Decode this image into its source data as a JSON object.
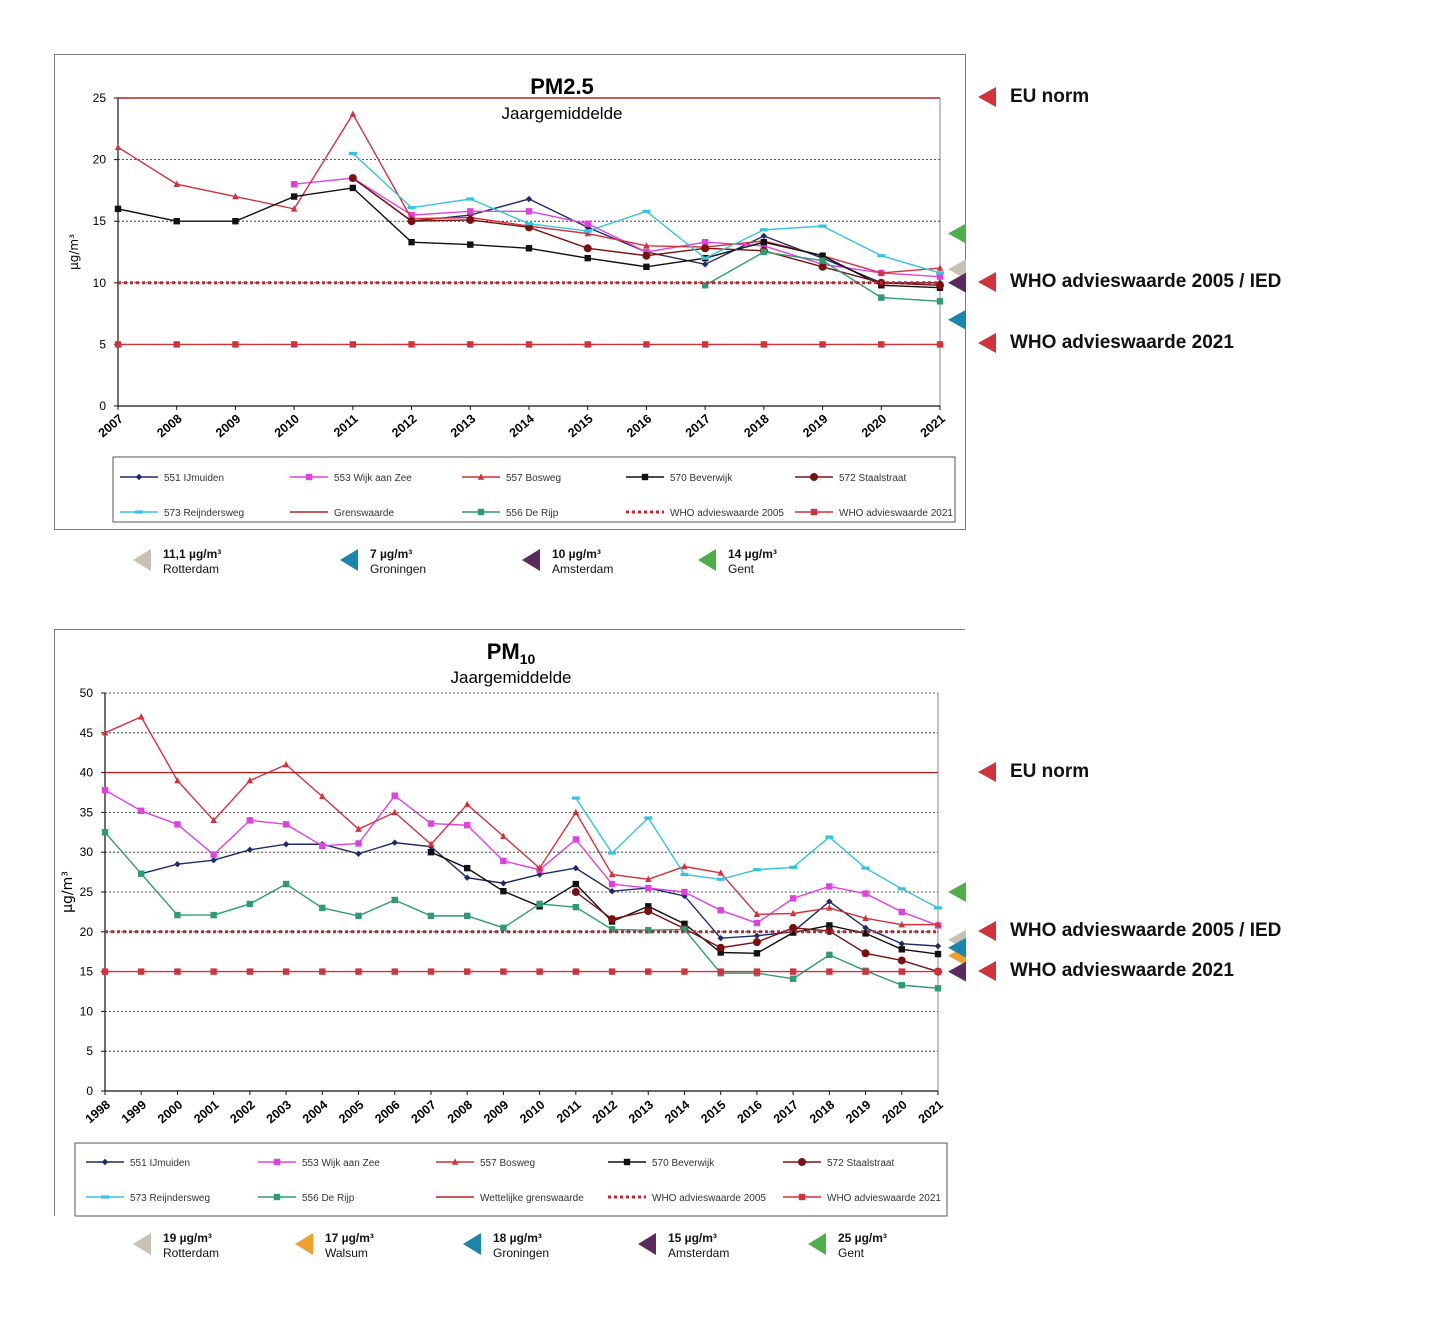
{
  "charts": [
    {
      "title": "PM2.5",
      "subtitle": "Jaargemiddelde",
      "ylabel": "µg/m³",
      "side_labels": [
        {
          "text": "EU norm",
          "value": 25
        },
        {
          "text": "WHO advieswaarde 2005 / IED",
          "value": 10
        },
        {
          "text": "WHO advieswaarde 2021",
          "value": 5
        }
      ],
      "cities": [
        {
          "value": "11,1 µg/m³",
          "name": "Rotterdam",
          "color": "#c7c2b3",
          "level": 11.1
        },
        {
          "value": "7 µg/m³",
          "name": "Groningen",
          "color": "#1b86ad",
          "level": 7
        },
        {
          "value": "10 µg/m³",
          "name": "Amsterdam",
          "color": "#5a2a5e",
          "level": 10
        },
        {
          "value": "14 µg/m³",
          "name": "Gent",
          "color": "#4fae4a",
          "level": 14
        }
      ]
    },
    {
      "title": "PM",
      "title_sub": "10",
      "subtitle": "Jaargemiddelde",
      "ylabel": "µg/m³",
      "side_labels": [
        {
          "text": "EU norm",
          "value": 40
        },
        {
          "text": "WHO advieswaarde 2005 / IED",
          "value": 20
        },
        {
          "text": "WHO advieswaarde 2021",
          "value": 15
        }
      ],
      "cities": [
        {
          "value": "19 µg/m³",
          "name": "Rotterdam",
          "color": "#c7c2b3",
          "level": 19
        },
        {
          "value": "17 µg/m³",
          "name": "Walsum",
          "color": "#f0a02a",
          "level": 17
        },
        {
          "value": "18 µg/m³",
          "name": "Groningen",
          "color": "#1b86ad",
          "level": 18
        },
        {
          "value": "15 µg/m³",
          "name": "Amsterdam",
          "color": "#5a2a5e",
          "level": 15
        },
        {
          "value": "25 µg/m³",
          "name": "Gent",
          "color": "#4fae4a",
          "level": 25
        }
      ]
    }
  ],
  "chart_data": [
    {
      "type": "line",
      "title": "PM2.5",
      "subtitle": "Jaargemiddelde",
      "ylabel": "µg/m³",
      "ylim": [
        0,
        25
      ],
      "yticks": [
        0,
        5,
        10,
        15,
        20,
        25
      ],
      "grid": true,
      "legend_placement": "bottom",
      "x": [
        "2007",
        "2008",
        "2009",
        "2010",
        "2011",
        "2012",
        "2013",
        "2014",
        "2015",
        "2016",
        "2017",
        "2018",
        "2019",
        "2020",
        "2021"
      ],
      "series": [
        {
          "name": "551 IJmuiden",
          "color": "#1f2a6b",
          "marker": "diamond",
          "style": "solid",
          "values": [
            null,
            null,
            null,
            null,
            18.5,
            15.0,
            15.5,
            16.8,
            14.5,
            12.5,
            11.5,
            13.8,
            12.0,
            10.0,
            10.0
          ]
        },
        {
          "name": "553 Wijk aan Zee",
          "color": "#e040e0",
          "marker": "square",
          "style": "solid",
          "values": [
            null,
            null,
            null,
            18.0,
            18.5,
            15.5,
            15.8,
            15.8,
            14.8,
            12.5,
            13.3,
            13.0,
            11.5,
            10.8,
            10.5
          ]
        },
        {
          "name": "557 Bosweg",
          "color": "#d3313b",
          "marker": "triangle",
          "style": "solid",
          "values": [
            21.0,
            18.0,
            17.0,
            16.0,
            23.7,
            15.2,
            15.3,
            14.6,
            14.0,
            13.0,
            12.9,
            13.4,
            12.2,
            10.8,
            11.2
          ]
        },
        {
          "name": "570 Beverwijk",
          "color": "#111111",
          "marker": "square",
          "style": "solid",
          "values": [
            16.0,
            15.0,
            15.0,
            17.0,
            17.7,
            13.3,
            13.1,
            12.8,
            12.0,
            11.3,
            12.0,
            13.3,
            12.2,
            9.8,
            9.6
          ]
        },
        {
          "name": "572 Staalstraat",
          "color": "#7a1010",
          "marker": "circle",
          "style": "solid",
          "values": [
            null,
            null,
            null,
            null,
            18.5,
            15.0,
            15.1,
            14.5,
            12.8,
            12.2,
            12.8,
            12.6,
            11.3,
            10.0,
            9.8
          ]
        },
        {
          "name": "573 Reijndersweg",
          "color": "#35c4e0",
          "marker": "dash",
          "style": "solid",
          "values": [
            null,
            null,
            null,
            null,
            20.5,
            16.1,
            16.8,
            14.8,
            14.2,
            15.8,
            12.0,
            14.3,
            14.6,
            12.2,
            10.8
          ]
        },
        {
          "name": "Grenswaarde",
          "color": "#b22222",
          "marker": "none",
          "style": "solid",
          "values": [
            25,
            25,
            25,
            25,
            25,
            25,
            25,
            25,
            25,
            25,
            25,
            25,
            25,
            25,
            25
          ]
        },
        {
          "name": "556 De Rijp",
          "color": "#2e9b74",
          "marker": "square",
          "style": "solid",
          "values": [
            null,
            null,
            null,
            null,
            null,
            null,
            null,
            null,
            null,
            null,
            9.8,
            12.5,
            11.8,
            8.8,
            8.5
          ]
        },
        {
          "name": "WHO advieswaarde 2005",
          "color": "#c0282f",
          "marker": "none",
          "style": "dotted",
          "values": [
            10,
            10,
            10,
            10,
            10,
            10,
            10,
            10,
            10,
            10,
            10,
            10,
            10,
            10,
            10
          ]
        },
        {
          "name": "WHO advieswaarde 2021",
          "color": "#d3313b",
          "marker": "square",
          "style": "solid",
          "values": [
            5,
            5,
            5,
            5,
            5,
            5,
            5,
            5,
            5,
            5,
            5,
            5,
            5,
            5,
            5
          ]
        }
      ]
    },
    {
      "type": "line",
      "title": "PM10",
      "subtitle": "Jaargemiddelde",
      "ylabel": "µg/m³",
      "ylim": [
        0,
        50
      ],
      "yticks": [
        0,
        5,
        10,
        15,
        20,
        25,
        30,
        35,
        40,
        45,
        50
      ],
      "grid": true,
      "legend_placement": "bottom",
      "x": [
        "1998",
        "1999",
        "2000",
        "2001",
        "2002",
        "2003",
        "2004",
        "2005",
        "2006",
        "2007",
        "2008",
        "2009",
        "2010",
        "2011",
        "2012",
        "2013",
        "2014",
        "2015",
        "2016",
        "2017",
        "2018",
        "2019",
        "2020",
        "2021"
      ],
      "series": [
        {
          "name": "551 IJmuiden",
          "color": "#1f2a6b",
          "marker": "diamond",
          "style": "solid",
          "values": [
            null,
            27.3,
            28.5,
            29.0,
            30.3,
            31.0,
            31.0,
            29.8,
            31.2,
            30.7,
            26.8,
            26.1,
            27.2,
            28.0,
            25.1,
            25.5,
            24.5,
            19.2,
            19.5,
            20.0,
            23.8,
            20.5,
            18.5,
            18.2
          ]
        },
        {
          "name": "553 Wijk aan Zee",
          "color": "#e040e0",
          "marker": "square",
          "style": "solid",
          "values": [
            37.8,
            35.2,
            33.5,
            29.7,
            34.0,
            33.5,
            30.8,
            31.1,
            37.1,
            33.6,
            33.4,
            28.9,
            27.8,
            31.6,
            26.0,
            25.5,
            25.0,
            22.7,
            21.1,
            24.2,
            25.7,
            24.8,
            22.5,
            20.8
          ]
        },
        {
          "name": "557 Bosweg",
          "color": "#d3313b",
          "marker": "triangle",
          "style": "solid",
          "values": [
            45.0,
            47.0,
            39.0,
            34.0,
            39.0,
            41.0,
            37.0,
            32.9,
            35.0,
            31.0,
            36.0,
            32.0,
            28.0,
            35.0,
            27.2,
            26.6,
            28.2,
            27.4,
            22.2,
            22.3,
            23.0,
            21.7,
            20.9,
            20.9
          ]
        },
        {
          "name": "570 Beverwijk",
          "color": "#111111",
          "marker": "square",
          "style": "solid",
          "values": [
            null,
            null,
            null,
            null,
            null,
            null,
            null,
            null,
            null,
            30.0,
            28.0,
            25.1,
            23.2,
            26.0,
            21.3,
            23.2,
            21.0,
            17.4,
            17.3,
            19.9,
            20.8,
            19.8,
            17.8,
            17.2
          ]
        },
        {
          "name": "572 Staalstraat",
          "color": "#7a1010",
          "marker": "circle",
          "style": "solid",
          "values": [
            null,
            null,
            null,
            null,
            null,
            null,
            null,
            null,
            null,
            null,
            null,
            null,
            null,
            25.0,
            21.6,
            22.6,
            20.4,
            18.0,
            18.7,
            20.5,
            20.1,
            17.3,
            16.4,
            15.0
          ]
        },
        {
          "name": "573 Reijndersweg",
          "color": "#35c4e0",
          "marker": "dash",
          "style": "solid",
          "values": [
            null,
            null,
            null,
            null,
            null,
            null,
            null,
            null,
            null,
            null,
            null,
            null,
            null,
            36.8,
            29.9,
            34.3,
            27.2,
            26.6,
            27.8,
            28.1,
            31.9,
            28.0,
            25.4,
            23.0
          ]
        },
        {
          "name": "556 De Rijp",
          "color": "#2e9b74",
          "marker": "square",
          "style": "solid",
          "values": [
            32.5,
            27.3,
            22.1,
            22.1,
            23.5,
            26.0,
            23.0,
            22.0,
            24.0,
            22.0,
            22.0,
            20.5,
            23.5,
            23.1,
            20.3,
            20.2,
            20.3,
            14.8,
            14.8,
            14.1,
            17.1,
            15.1,
            13.3,
            12.9
          ]
        },
        {
          "name": "Wettelijke grenswaarde",
          "color": "#b22222",
          "marker": "none",
          "style": "solid",
          "values": [
            40,
            40,
            40,
            40,
            40,
            40,
            40,
            40,
            40,
            40,
            40,
            40,
            40,
            40,
            40,
            40,
            40,
            40,
            40,
            40,
            40,
            40,
            40,
            40
          ]
        },
        {
          "name": "WHO advieswaarde 2005",
          "color": "#c0282f",
          "marker": "none",
          "style": "dotted",
          "values": [
            20,
            20,
            20,
            20,
            20,
            20,
            20,
            20,
            20,
            20,
            20,
            20,
            20,
            20,
            20,
            20,
            20,
            20,
            20,
            20,
            20,
            20,
            20,
            20
          ]
        },
        {
          "name": "WHO advieswaarde 2021",
          "color": "#d3313b",
          "marker": "square",
          "style": "solid",
          "values": [
            15,
            15,
            15,
            15,
            15,
            15,
            15,
            15,
            15,
            15,
            15,
            15,
            15,
            15,
            15,
            15,
            15,
            15,
            15,
            15,
            15,
            15,
            15,
            15
          ]
        }
      ]
    }
  ]
}
